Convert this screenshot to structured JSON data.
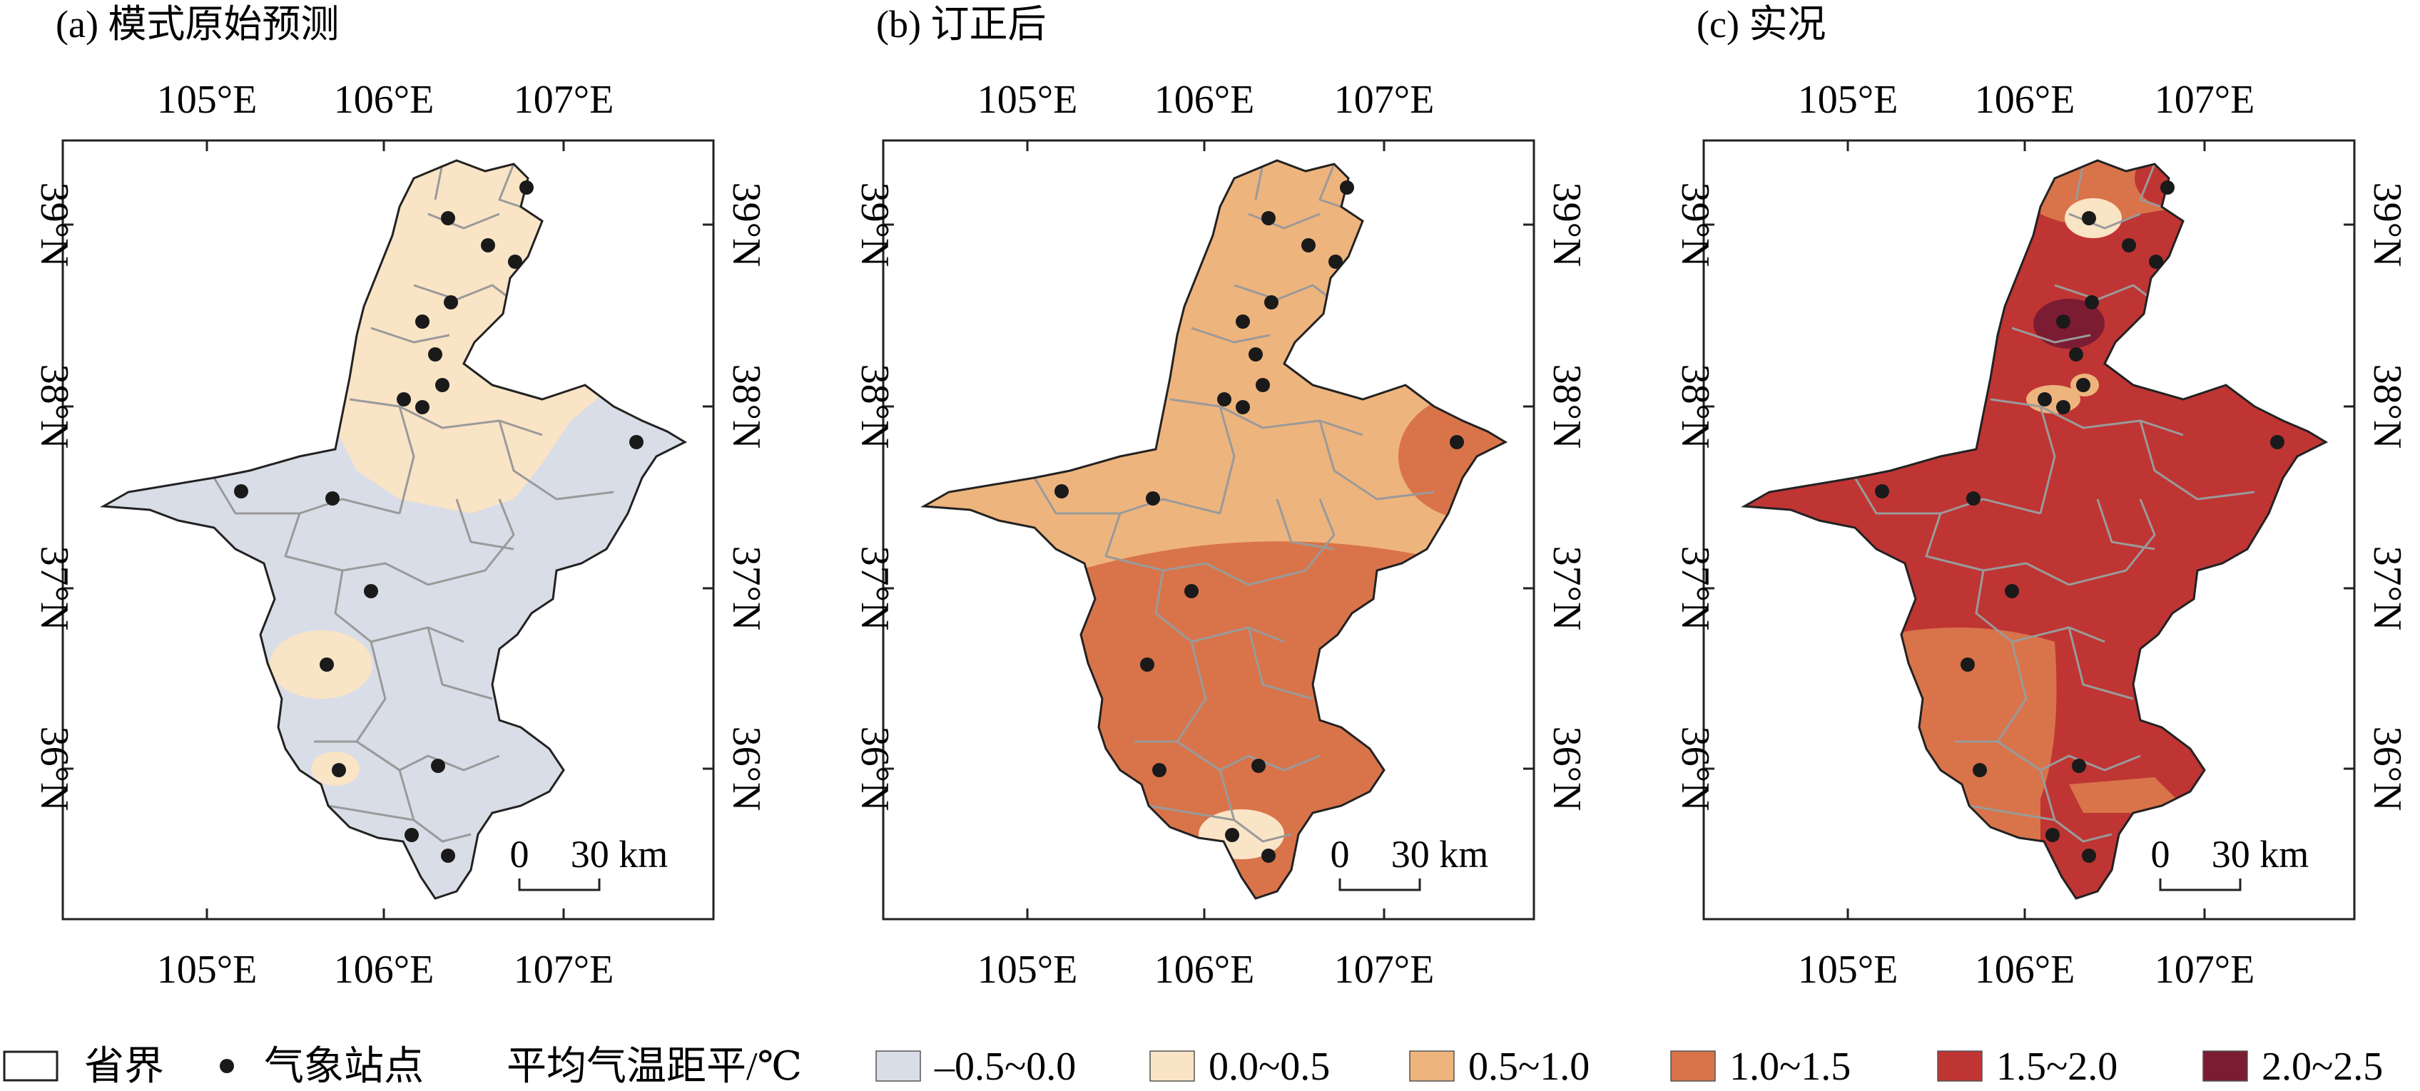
{
  "panels": [
    {
      "title": "(a) 模式原始预测",
      "key": "a"
    },
    {
      "title": "(b) 订正后",
      "key": "b"
    },
    {
      "title": "(c) 实况",
      "key": "c"
    }
  ],
  "lon_ticks": [
    "105°E",
    "106°E",
    "107°E"
  ],
  "lat_ticks": [
    "39°N",
    "38°N",
    "37°N",
    "36°N"
  ],
  "scale_bar": {
    "zero": "0",
    "dist": "30 km"
  },
  "legend": {
    "boundary_label": "省界",
    "station_label": "气象站点",
    "variable_label": "平均气温距平/℃",
    "bins": [
      {
        "label": "–0.5~0.0",
        "color": "#d9dde7"
      },
      {
        "label": "0.0~0.5",
        "color": "#fae4c6"
      },
      {
        "label": "0.5~1.0",
        "color": "#eeb47d"
      },
      {
        "label": "1.0~1.5",
        "color": "#d9744a"
      },
      {
        "label": "1.5~2.0",
        "color": "#bf3534"
      },
      {
        "label": "2.0~2.5",
        "color": "#7b1c33"
      }
    ]
  },
  "colors": {
    "station": "#1a1a1a",
    "boundary": "#9a9a9a",
    "outline": "#222222"
  }
}
